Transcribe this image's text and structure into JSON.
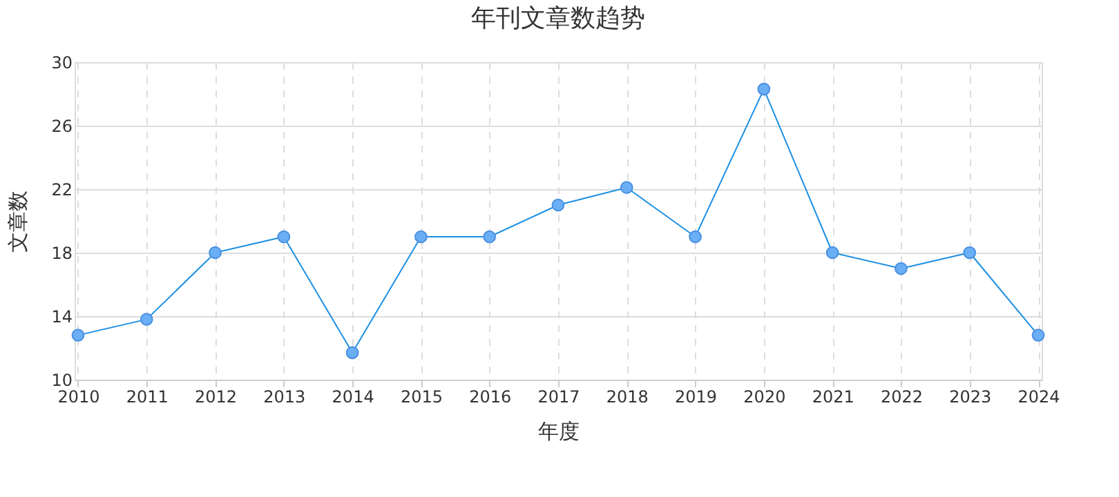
{
  "chart_data": {
    "type": "line",
    "title": "年刊文章数趋势",
    "xlabel": "年度",
    "ylabel": "文章数",
    "categories": [
      "2010",
      "2011",
      "2012",
      "2013",
      "2014",
      "2015",
      "2016",
      "2017",
      "2018",
      "2019",
      "2020",
      "2021",
      "2022",
      "2023",
      "2024"
    ],
    "series": [
      {
        "color": "#1c8fe3",
        "values": [
          12.8,
          13.8,
          18,
          19,
          11.7,
          19,
          19,
          21,
          22.1,
          19,
          28.3,
          18,
          17,
          18,
          12.8
        ]
      }
    ],
    "ylim": [
      10,
      30
    ],
    "yticks": [
      10,
      14,
      18,
      22,
      26,
      30
    ],
    "grid": true,
    "marker": "circle",
    "line_style": "solid"
  }
}
